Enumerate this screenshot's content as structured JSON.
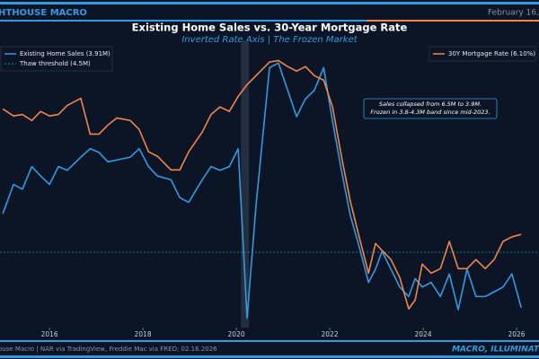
{
  "chart_data": {
    "type": "line",
    "header_left": "HTHOUSE MACRO",
    "header_right": "February 16,",
    "title": "Existing Home Sales vs. 30-Year Mortgage Rate",
    "subtitle": "Inverted Rate Axis | The Frozen Market",
    "annotation": [
      "Sales collapsed from 6.5M to 3.9M.",
      "Frozen in 3.8-4.3M band since mid-2023."
    ],
    "footer_left": "ouse Macro | NAR via TradingView, Freddie Mac via FRED; 02.16.2026",
    "footer_right": "MACRO, ILLUMINAT",
    "x": [
      2015.0,
      2015.23,
      2015.42,
      2015.62,
      2015.81,
      2016.0,
      2016.19,
      2016.38,
      2016.67,
      2016.87,
      2017.06,
      2017.25,
      2017.44,
      2017.73,
      2017.92,
      2018.12,
      2018.31,
      2018.6,
      2018.79,
      2018.98,
      2019.27,
      2019.46,
      2019.65,
      2019.85,
      2020.04,
      2020.23,
      2020.42,
      2020.71,
      2020.9,
      2021.1,
      2021.29,
      2021.48,
      2021.67,
      2021.87,
      2022.06,
      2022.25,
      2022.44,
      2022.63,
      2022.83,
      2022.98,
      2023.12,
      2023.31,
      2023.5,
      2023.69,
      2023.83,
      2023.98,
      2024.17,
      2024.37,
      2024.56,
      2024.75,
      2024.94,
      2025.13,
      2025.33,
      2025.52,
      2025.71,
      2025.9,
      2026.1
    ],
    "xlim": [
      2014.94,
      2026.48
    ],
    "xticks": [
      2016,
      2018,
      2020,
      2022,
      2024,
      2026
    ],
    "ylim": [
      3.7,
      6.75
    ],
    "y2lim": [
      7.95,
      2.25
    ],
    "shaded_x": [
      2020.1,
      2020.27
    ],
    "series": [
      {
        "name": "Existing Home Sales (3.91M)",
        "color": "#2f9be0",
        "values": [
          4.91,
          5.22,
          5.17,
          5.41,
          5.31,
          5.22,
          5.41,
          5.37,
          5.51,
          5.6,
          5.56,
          5.46,
          5.48,
          5.51,
          5.6,
          5.41,
          5.31,
          5.27,
          5.08,
          5.03,
          5.27,
          5.41,
          5.37,
          5.41,
          5.6,
          3.8,
          4.99,
          6.46,
          6.51,
          6.22,
          5.94,
          6.13,
          6.22,
          6.46,
          5.89,
          5.37,
          4.89,
          4.56,
          4.18,
          4.32,
          4.51,
          4.32,
          4.13,
          4.03,
          4.22,
          4.13,
          4.18,
          4.03,
          4.27,
          3.89,
          4.32,
          4.03,
          4.03,
          4.08,
          4.13,
          4.27,
          3.91
        ]
      },
      {
        "name": "30Y Mortgage Rate (6.10%)",
        "color": "#f4854a",
        "axis": "y2",
        "values": [
          3.61,
          3.75,
          3.72,
          3.84,
          3.66,
          3.75,
          3.72,
          3.54,
          3.4,
          4.11,
          4.11,
          3.93,
          3.79,
          3.84,
          4.02,
          4.46,
          4.55,
          4.82,
          4.82,
          4.46,
          4.07,
          3.72,
          3.57,
          3.66,
          3.36,
          3.13,
          2.95,
          2.68,
          2.65,
          2.77,
          2.86,
          2.77,
          2.95,
          3.04,
          3.57,
          4.55,
          5.44,
          6.15,
          6.87,
          6.28,
          6.42,
          6.6,
          6.96,
          7.58,
          7.4,
          6.69,
          6.87,
          6.78,
          6.24,
          6.78,
          6.78,
          6.6,
          6.78,
          6.6,
          6.24,
          6.15,
          6.1
        ]
      }
    ],
    "hlines": [
      {
        "name": "Thaw threshold (4.5M)",
        "value": 4.5,
        "color": "#1f8a9a"
      }
    ]
  }
}
